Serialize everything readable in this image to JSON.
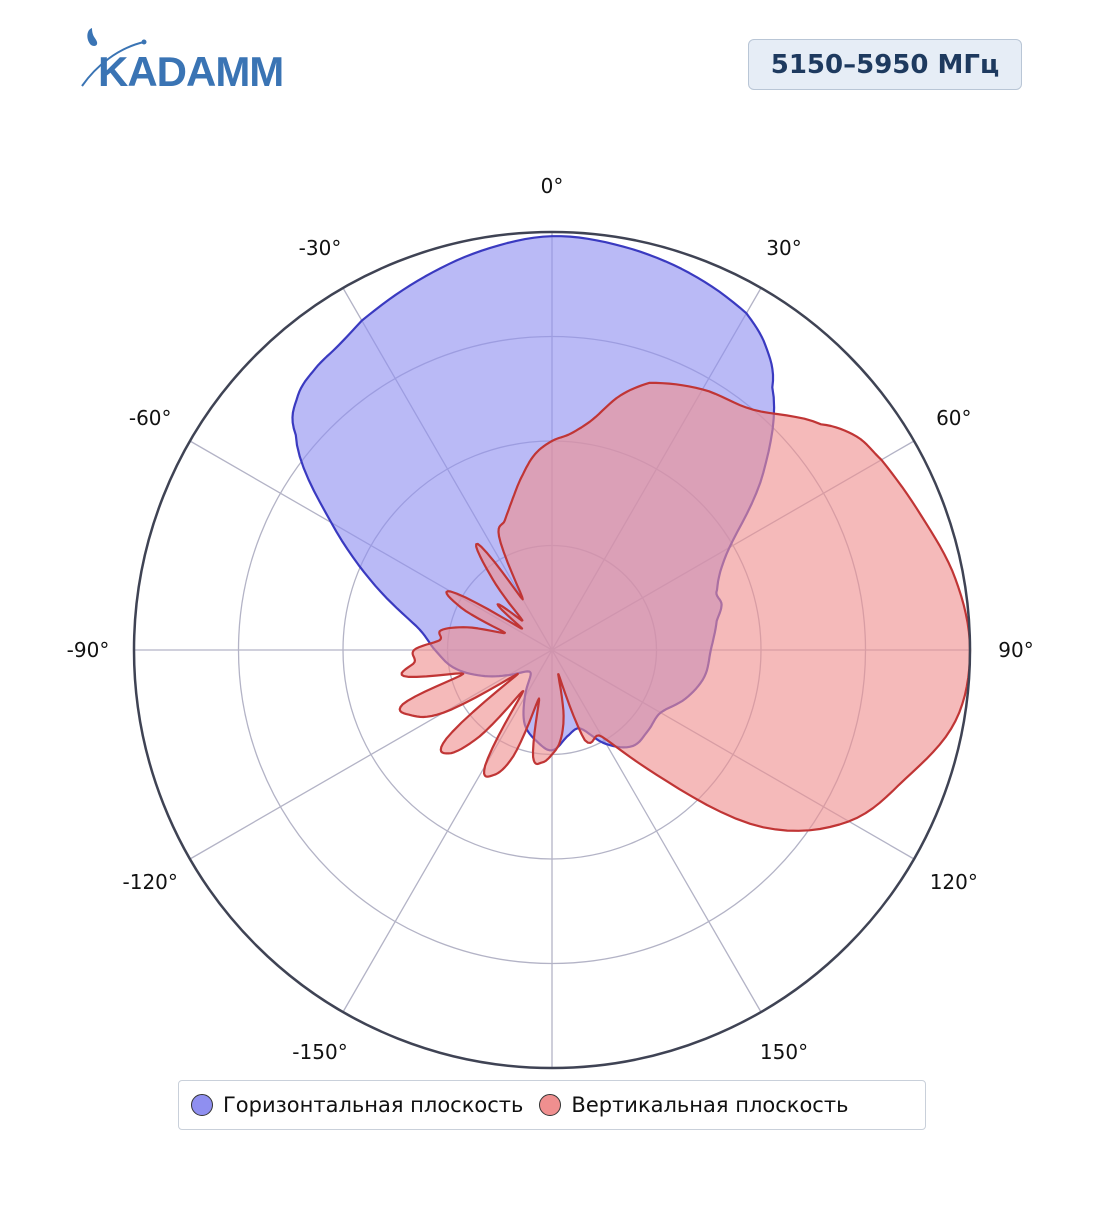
{
  "header": {
    "logo_text": "KADAMM",
    "frequency": "5150–5950 МГц"
  },
  "colors": {
    "horizontal_fill": "#8f8ff0",
    "horizontal_line": "#3a3ac0",
    "vertical_fill": "#ef8f8f",
    "vertical_line": "#c03535",
    "grid": "#b3b3c6",
    "outer_ring": "#3f4354",
    "logo": "#3a74b4"
  },
  "legend": [
    {
      "label": "Горизонтальная плоскость",
      "color": "#8f8ff0"
    },
    {
      "label": "Вертикальная плоскость",
      "color": "#ef8f8f"
    }
  ],
  "chart_data": {
    "type": "polar",
    "angular_direction": "clockwise",
    "zero_at": "top",
    "angular_ticks": [
      0,
      30,
      60,
      90,
      120,
      150,
      180,
      -150,
      -120,
      -90,
      -60,
      -30
    ],
    "angular_tick_labels": [
      "0°",
      "30°",
      "60°",
      "90°",
      "120°",
      "150°",
      "",
      "-150°",
      "-120°",
      "-90°",
      "-60°",
      "-30°"
    ],
    "radial_range": [
      0,
      1
    ],
    "radial_grid": [
      0.25,
      0.5,
      0.75,
      1.0
    ],
    "radial_tick_labels_shown": false,
    "series": [
      {
        "name": "Горизонтальная плоскость",
        "theta": [
          0,
          10,
          20,
          30,
          35,
          40,
          50,
          60,
          70,
          75,
          80,
          90,
          100,
          110,
          120,
          130,
          140,
          150,
          160,
          170,
          180,
          -170,
          -160,
          -150,
          -140,
          -130,
          -120,
          -110,
          -100,
          -90,
          -80,
          -70,
          -60,
          -50,
          -45,
          -40,
          -35,
          -30,
          -20,
          -10
        ],
        "r": [
          0.99,
          0.98,
          0.96,
          0.93,
          0.89,
          0.82,
          0.66,
          0.49,
          0.42,
          0.42,
          0.4,
          0.38,
          0.37,
          0.34,
          0.3,
          0.3,
          0.3,
          0.26,
          0.2,
          0.21,
          0.24,
          0.22,
          0.19,
          0.13,
          0.08,
          0.08,
          0.12,
          0.18,
          0.24,
          0.28,
          0.33,
          0.45,
          0.61,
          0.8,
          0.86,
          0.88,
          0.89,
          0.91,
          0.94,
          0.97
        ]
      },
      {
        "name": "Вертикальная плоскость",
        "theta": [
          0,
          5,
          10,
          15,
          20,
          30,
          40,
          50,
          55,
          60,
          70,
          80,
          90,
          100,
          110,
          120,
          130,
          140,
          150,
          160,
          165,
          170,
          175,
          180,
          -175,
          -170,
          -165,
          -160,
          -155,
          -150,
          -145,
          -140,
          -135,
          -130,
          -125,
          -120,
          -115,
          -110,
          -105,
          -100,
          -95,
          -90,
          -85,
          -80,
          -75,
          -70,
          -65,
          -60,
          -55,
          -50,
          -45,
          -40,
          -35,
          -30,
          -25,
          -20,
          -15,
          -10,
          -5
        ],
        "r": [
          0.5,
          0.52,
          0.56,
          0.63,
          0.68,
          0.72,
          0.75,
          0.84,
          0.89,
          0.91,
          0.94,
          0.98,
          1.0,
          0.98,
          0.9,
          0.82,
          0.66,
          0.39,
          0.24,
          0.23,
          0.06,
          0.16,
          0.22,
          0.25,
          0.27,
          0.26,
          0.12,
          0.27,
          0.33,
          0.32,
          0.12,
          0.27,
          0.35,
          0.33,
          0.1,
          0.3,
          0.37,
          0.38,
          0.22,
          0.36,
          0.33,
          0.33,
          0.27,
          0.27,
          0.21,
          0.12,
          0.24,
          0.28,
          0.09,
          0.17,
          0.1,
          0.22,
          0.31,
          0.14,
          0.3,
          0.33,
          0.37,
          0.42,
          0.47
        ]
      }
    ]
  }
}
